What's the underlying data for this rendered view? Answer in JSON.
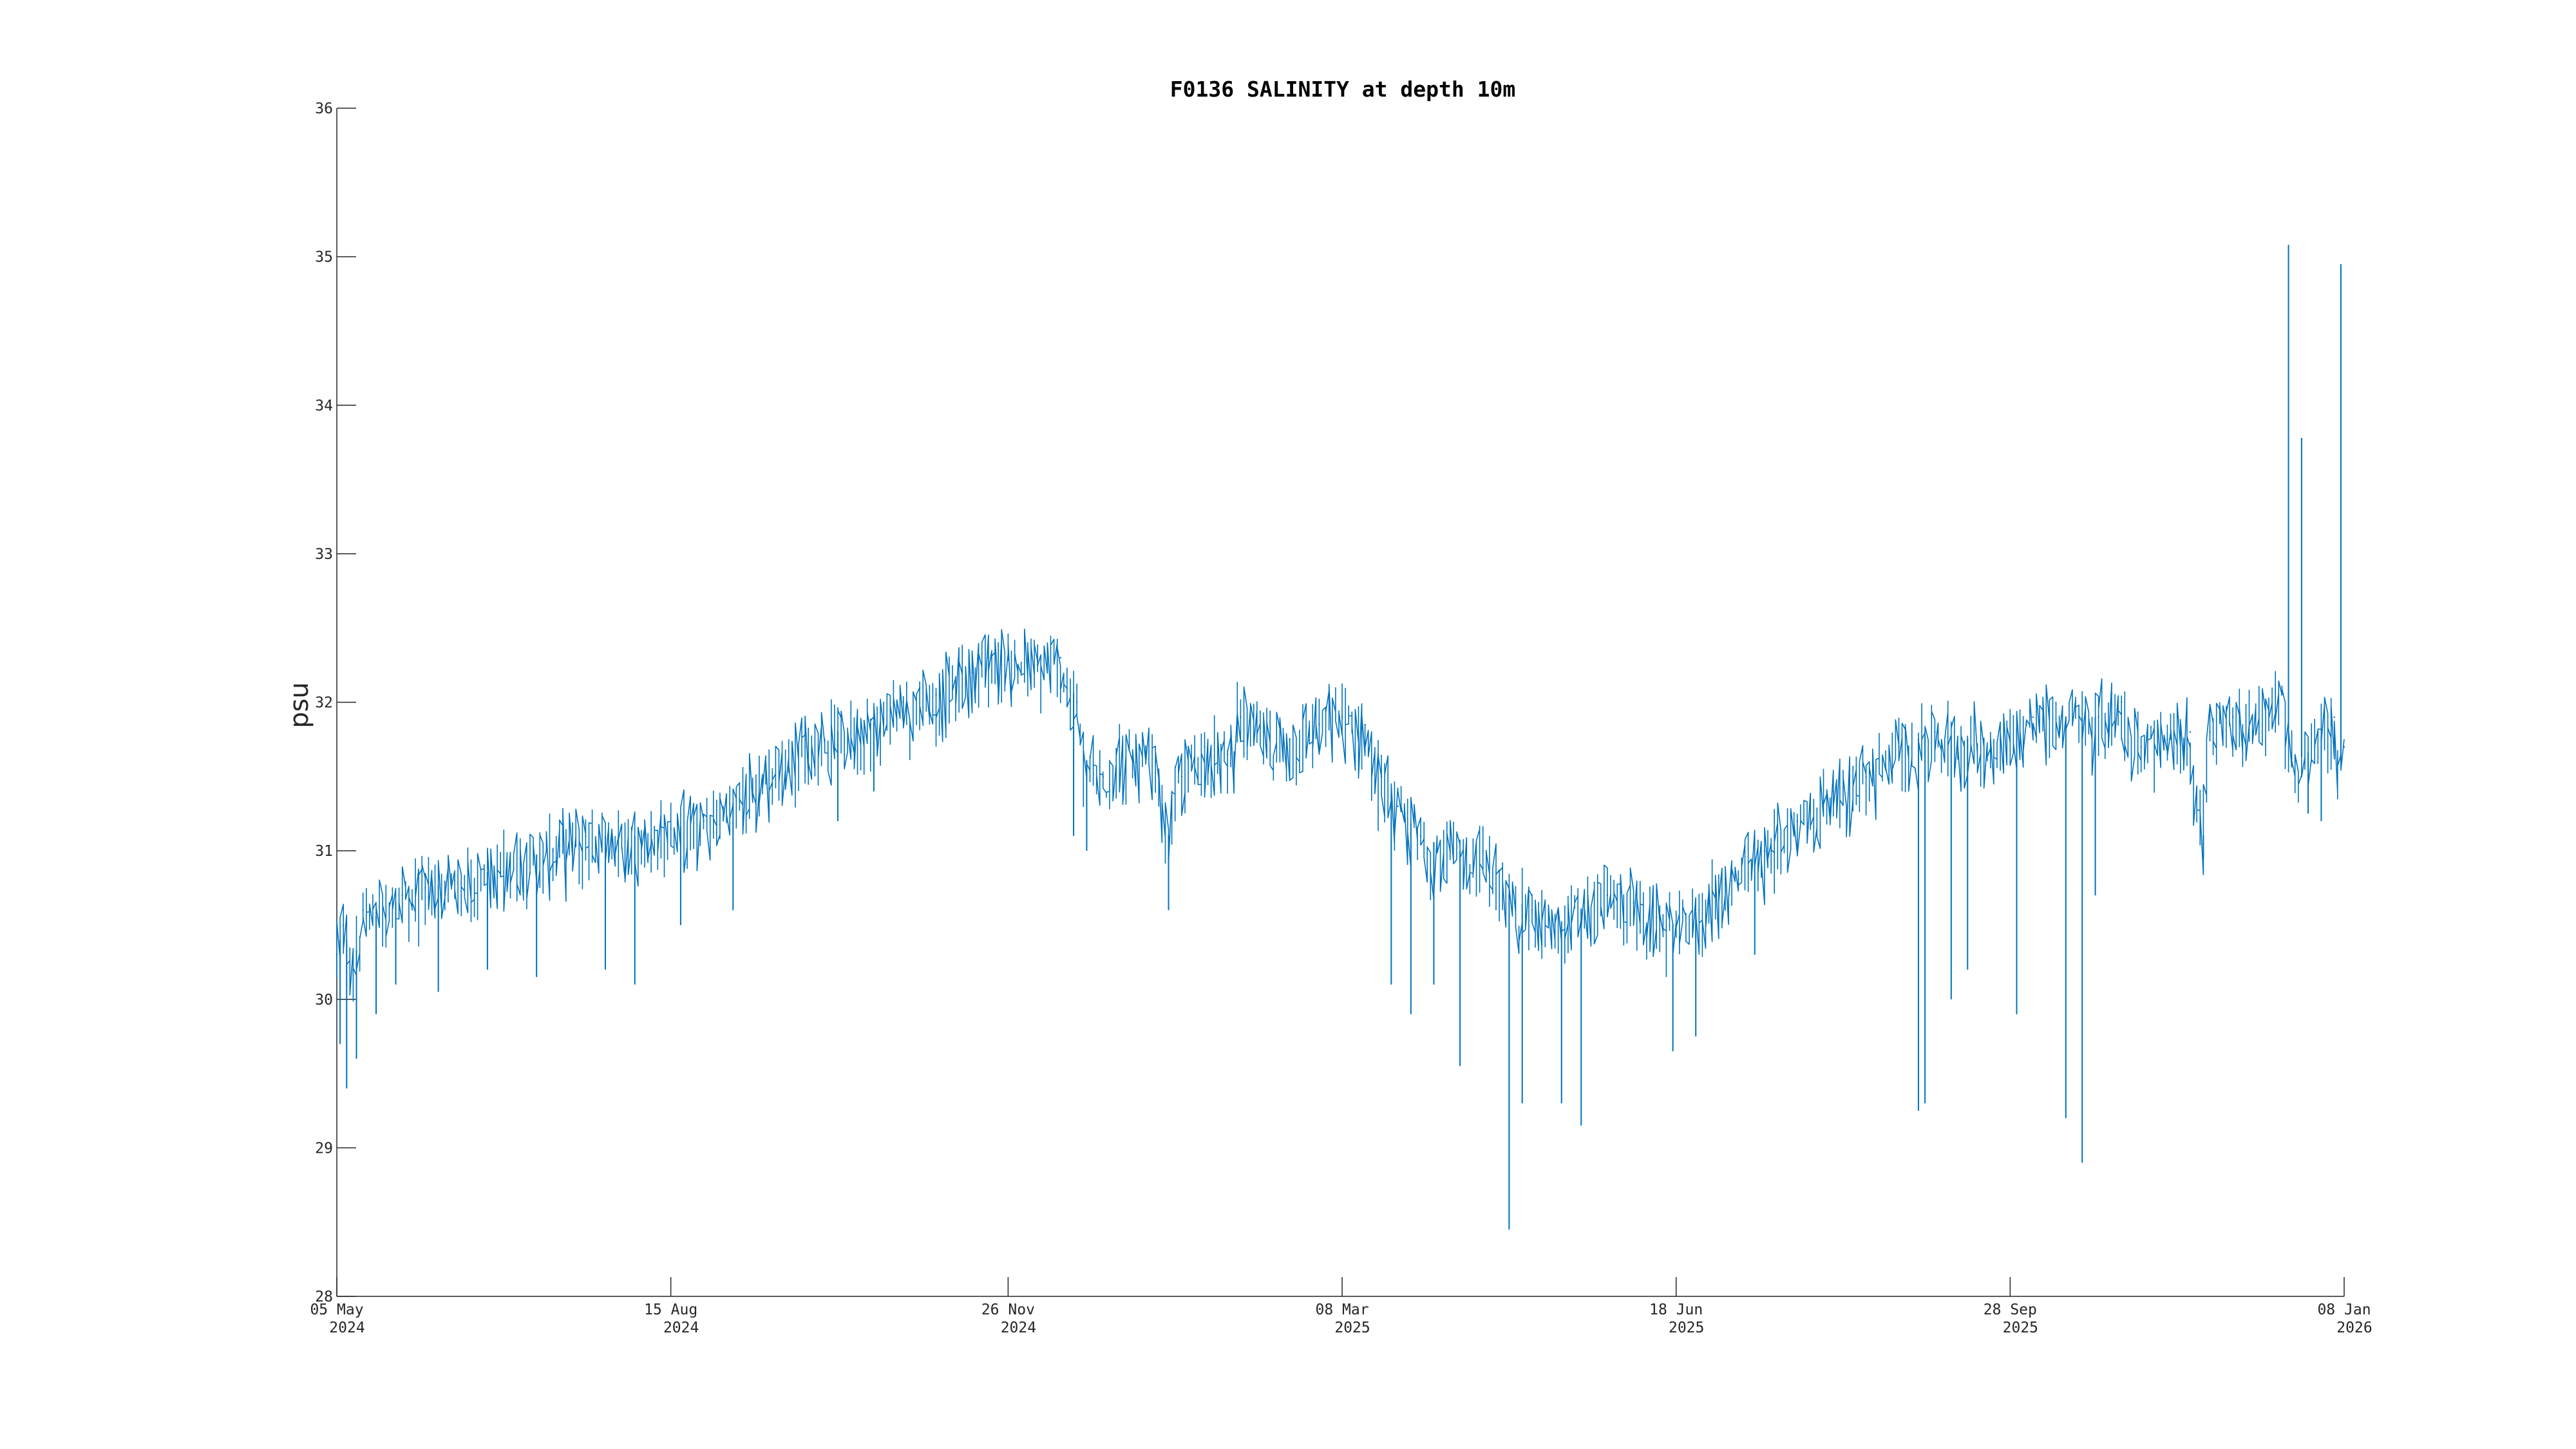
{
  "chart_data": {
    "type": "line",
    "title": "F0136 SALINITY at depth 10m",
    "xlabel": "",
    "ylabel": "psu",
    "xlim": [
      "2024-05-05",
      "2026-01-08"
    ],
    "ylim": [
      28,
      36
    ],
    "grid": false,
    "color": "#0072BD",
    "y_ticks": [
      "28",
      "29",
      "30",
      "31",
      "32",
      "33",
      "34",
      "35",
      "36"
    ],
    "x_ticks": [
      {
        "date": "2024-05-05",
        "line1": "05 May",
        "line2": "2024"
      },
      {
        "date": "2024-08-15",
        "line1": "15 Aug",
        "line2": "2024"
      },
      {
        "date": "2024-11-26",
        "line1": "26 Nov",
        "line2": "2024"
      },
      {
        "date": "2025-03-08",
        "line1": "08 Mar",
        "line2": "2025"
      },
      {
        "date": "2025-06-18",
        "line1": "18 Jun",
        "line2": "2025"
      },
      {
        "date": "2025-09-28",
        "line1": "28 Sep",
        "line2": "2025"
      },
      {
        "date": "2026-01-08",
        "line1": "08 Jan",
        "line2": "2026"
      }
    ],
    "series": [
      {
        "points": [
          [
            "2024-05-05",
            30.3
          ],
          [
            "2024-05-07",
            30.5
          ],
          [
            "2024-05-10",
            30.2
          ],
          [
            "2024-05-13",
            30.6
          ],
          [
            "2024-05-18",
            30.55
          ],
          [
            "2024-05-25",
            30.7
          ],
          [
            "2024-06-01",
            30.75
          ],
          [
            "2024-06-10",
            30.8
          ],
          [
            "2024-06-20",
            30.85
          ],
          [
            "2024-06-30",
            30.95
          ],
          [
            "2024-07-10",
            31.0
          ],
          [
            "2024-07-20",
            31.1
          ],
          [
            "2024-07-30",
            31.1
          ],
          [
            "2024-08-09",
            31.1
          ],
          [
            "2024-08-15",
            31.15
          ],
          [
            "2024-08-25",
            31.2
          ],
          [
            "2024-09-05",
            31.35
          ],
          [
            "2024-09-15",
            31.55
          ],
          [
            "2024-09-25",
            31.7
          ],
          [
            "2024-10-05",
            31.8
          ],
          [
            "2024-10-15",
            31.85
          ],
          [
            "2024-10-25",
            32.0
          ],
          [
            "2024-11-04",
            32.05
          ],
          [
            "2024-11-15",
            32.2
          ],
          [
            "2024-11-20",
            32.3
          ],
          [
            "2024-11-26",
            32.3
          ],
          [
            "2024-12-05",
            32.25
          ],
          [
            "2024-12-12",
            32.3
          ],
          [
            "2024-12-17",
            32.0
          ],
          [
            "2024-12-20",
            31.6
          ],
          [
            "2024-12-25",
            31.5
          ],
          [
            "2024-12-30",
            31.7
          ],
          [
            "2025-01-04",
            31.6
          ],
          [
            "2025-01-10",
            31.6
          ],
          [
            "2025-01-14",
            31.1
          ],
          [
            "2025-01-18",
            31.5
          ],
          [
            "2025-01-25",
            31.7
          ],
          [
            "2025-02-01",
            31.65
          ],
          [
            "2025-02-05",
            31.9
          ],
          [
            "2025-02-12",
            31.8
          ],
          [
            "2025-02-20",
            31.75
          ],
          [
            "2025-03-01",
            31.85
          ],
          [
            "2025-03-08",
            31.9
          ],
          [
            "2025-03-15",
            31.85
          ],
          [
            "2025-03-20",
            31.5
          ],
          [
            "2025-03-25",
            31.3
          ],
          [
            "2025-04-01",
            31.1
          ],
          [
            "2025-04-10",
            31.0
          ],
          [
            "2025-04-20",
            31.0
          ],
          [
            "2025-04-28",
            30.7
          ],
          [
            "2025-05-05",
            30.6
          ],
          [
            "2025-05-12",
            30.5
          ],
          [
            "2025-05-20",
            30.6
          ],
          [
            "2025-05-28",
            30.7
          ],
          [
            "2025-06-05",
            30.65
          ],
          [
            "2025-06-12",
            30.55
          ],
          [
            "2025-06-18",
            30.5
          ],
          [
            "2025-06-25",
            30.6
          ],
          [
            "2025-07-05",
            30.8
          ],
          [
            "2025-07-15",
            31.0
          ],
          [
            "2025-07-25",
            31.2
          ],
          [
            "2025-08-05",
            31.4
          ],
          [
            "2025-08-15",
            31.5
          ],
          [
            "2025-08-25",
            31.7
          ],
          [
            "2025-09-05",
            31.8
          ],
          [
            "2025-09-15",
            31.75
          ],
          [
            "2025-09-25",
            31.75
          ],
          [
            "2025-10-05",
            31.9
          ],
          [
            "2025-10-15",
            31.9
          ],
          [
            "2025-10-25",
            31.9
          ],
          [
            "2025-11-01",
            32.0
          ],
          [
            "2025-11-07",
            31.7
          ],
          [
            "2025-11-15",
            31.75
          ],
          [
            "2025-11-22",
            31.8
          ],
          [
            "2025-11-26",
            31.1
          ],
          [
            "2025-11-28",
            31.8
          ],
          [
            "2025-12-05",
            31.9
          ],
          [
            "2025-12-15",
            31.95
          ],
          [
            "2025-12-20",
            32.05
          ],
          [
            "2025-12-24",
            31.6
          ],
          [
            "2025-12-30",
            31.7
          ],
          [
            "2026-01-05",
            31.9
          ],
          [
            "2026-01-07",
            31.6
          ],
          [
            "2026-01-08",
            31.7
          ]
        ],
        "spikes": [
          [
            "2024-05-06",
            29.7
          ],
          [
            "2024-05-08",
            29.4
          ],
          [
            "2024-05-11",
            29.6
          ],
          [
            "2024-05-17",
            29.9
          ],
          [
            "2024-05-23",
            30.1
          ],
          [
            "2024-06-05",
            30.05
          ],
          [
            "2024-06-20",
            30.2
          ],
          [
            "2024-07-05",
            30.15
          ],
          [
            "2024-07-26",
            30.2
          ],
          [
            "2024-08-04",
            30.1
          ],
          [
            "2024-08-18",
            30.5
          ],
          [
            "2024-09-03",
            30.6
          ],
          [
            "2024-10-05",
            31.2
          ],
          [
            "2024-10-16",
            31.4
          ],
          [
            "2024-12-16",
            31.1
          ],
          [
            "2024-12-20",
            31.0
          ],
          [
            "2025-01-14",
            30.6
          ],
          [
            "2025-03-23",
            30.1
          ],
          [
            "2025-03-29",
            29.9
          ],
          [
            "2025-04-05",
            30.1
          ],
          [
            "2025-04-13",
            29.55
          ],
          [
            "2025-04-28",
            28.45
          ],
          [
            "2025-05-02",
            29.3
          ],
          [
            "2025-05-14",
            29.3
          ],
          [
            "2025-05-20",
            29.15
          ],
          [
            "2025-06-17",
            29.65
          ],
          [
            "2025-06-24",
            29.75
          ],
          [
            "2025-07-12",
            30.3
          ],
          [
            "2025-08-31",
            29.25
          ],
          [
            "2025-09-02",
            29.3
          ],
          [
            "2025-09-10",
            30.0
          ],
          [
            "2025-09-15",
            30.2
          ],
          [
            "2025-09-30",
            29.9
          ],
          [
            "2025-10-15",
            29.2
          ],
          [
            "2025-10-20",
            28.9
          ],
          [
            "2025-10-24",
            30.7
          ],
          [
            "2025-11-26",
            30.95
          ],
          [
            "2025-12-28",
            31.25
          ],
          [
            "2026-01-01",
            31.2
          ]
        ],
        "high_spikes": [
          [
            "2025-12-22",
            35.08
          ],
          [
            "2025-12-26",
            33.78
          ],
          [
            "2026-01-07",
            34.95
          ]
        ]
      }
    ]
  }
}
